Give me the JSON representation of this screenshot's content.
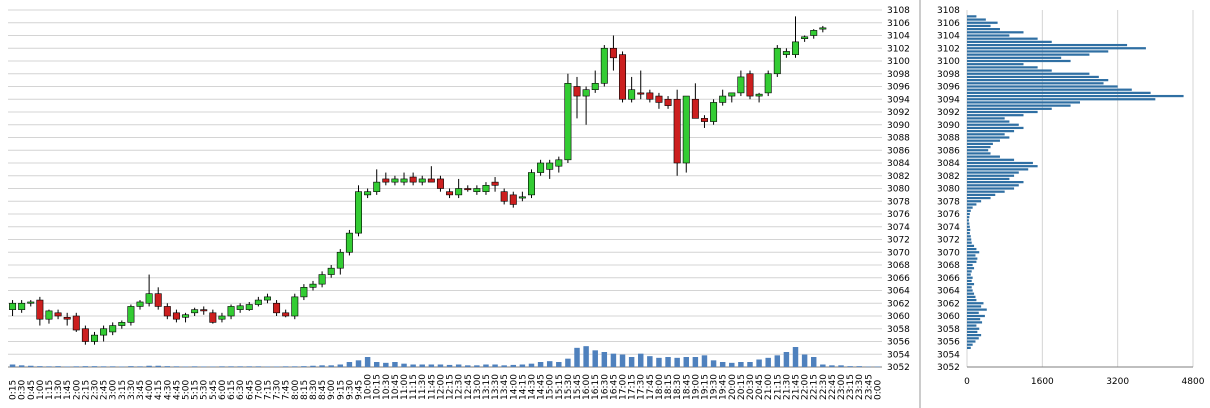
{
  "colors": {
    "up_candle": "#33cc33",
    "down_candle": "#cc1f1f",
    "volume_bars": "#4f81bd",
    "profile_bars": "#2f6fa3",
    "grid": "#d4d4d4",
    "panel_border": "#9a9a9a",
    "background": "#ffffff"
  },
  "chart_data": [
    {
      "type": "candlestick",
      "price_axis": {
        "min": 3052,
        "max": 3108,
        "ticks": [
          3052,
          3054,
          3056,
          3058,
          3060,
          3062,
          3064,
          3066,
          3068,
          3070,
          3072,
          3074,
          3076,
          3078,
          3080,
          3082,
          3084,
          3086,
          3088,
          3090,
          3092,
          3094,
          3096,
          3098,
          3100,
          3102,
          3104,
          3106,
          3108
        ]
      },
      "grid": true,
      "time_labels": [
        "0:15",
        "0:30",
        "0:45",
        "1:00",
        "1:15",
        "1:30",
        "1:45",
        "2:00",
        "2:15",
        "2:30",
        "2:45",
        "3:00",
        "3:15",
        "3:30",
        "3:45",
        "4:00",
        "4:15",
        "4:30",
        "4:45",
        "5:00",
        "5:15",
        "5:30",
        "5:45",
        "6:00",
        "6:15",
        "6:30",
        "6:45",
        "7:00",
        "7:15",
        "7:30",
        "7:45",
        "8:00",
        "8:15",
        "8:30",
        "8:45",
        "9:00",
        "9:15",
        "9:30",
        "9:45",
        "10:00",
        "10:15",
        "10:30",
        "10:45",
        "11:00",
        "11:15",
        "11:30",
        "11:45",
        "12:00",
        "12:15",
        "12:30",
        "12:45",
        "13:00",
        "13:15",
        "13:30",
        "13:45",
        "14:00",
        "14:15",
        "14:30",
        "14:45",
        "15:00",
        "15:15",
        "15:30",
        "15:45",
        "16:00",
        "16:15",
        "16:30",
        "16:45",
        "17:00",
        "17:15",
        "17:30",
        "17:45",
        "18:00",
        "18:15",
        "18:30",
        "18:45",
        "19:00",
        "19:15",
        "19:30",
        "19:45",
        "20:00",
        "20:15",
        "20:30",
        "20:45",
        "21:00",
        "21:15",
        "21:30",
        "21:45",
        "22:00",
        "22:15",
        "22:30",
        "22:45",
        "23:00",
        "23:15",
        "23:30",
        "23:45",
        "0:00"
      ],
      "candles": [
        {
          "o": 3061.0,
          "h": 3062.5,
          "l": 3060.0,
          "c": 3062.0
        },
        {
          "o": 3061.0,
          "h": 3062.5,
          "l": 3060.5,
          "c": 3062.0
        },
        {
          "o": 3062.0,
          "h": 3062.5,
          "l": 3061.5,
          "c": 3062.2
        },
        {
          "o": 3062.5,
          "h": 3063.0,
          "l": 3058.5,
          "c": 3059.5
        },
        {
          "o": 3059.5,
          "h": 3061.0,
          "l": 3058.8,
          "c": 3060.8
        },
        {
          "o": 3060.5,
          "h": 3061.0,
          "l": 3059.5,
          "c": 3060.0
        },
        {
          "o": 3059.8,
          "h": 3060.5,
          "l": 3058.5,
          "c": 3059.5
        },
        {
          "o": 3060.0,
          "h": 3060.5,
          "l": 3057.5,
          "c": 3057.8
        },
        {
          "o": 3058.0,
          "h": 3058.5,
          "l": 3055.5,
          "c": 3056.0
        },
        {
          "o": 3056.0,
          "h": 3057.5,
          "l": 3055.5,
          "c": 3057.0
        },
        {
          "o": 3057.0,
          "h": 3058.5,
          "l": 3056.0,
          "c": 3058.0
        },
        {
          "o": 3057.5,
          "h": 3059.0,
          "l": 3057.0,
          "c": 3058.5
        },
        {
          "o": 3058.5,
          "h": 3059.3,
          "l": 3058.0,
          "c": 3059.0
        },
        {
          "o": 3059.0,
          "h": 3061.8,
          "l": 3058.5,
          "c": 3061.5
        },
        {
          "o": 3061.5,
          "h": 3062.5,
          "l": 3061.0,
          "c": 3062.2
        },
        {
          "o": 3062.0,
          "h": 3066.5,
          "l": 3061.5,
          "c": 3063.5
        },
        {
          "o": 3063.5,
          "h": 3064.5,
          "l": 3061.0,
          "c": 3061.5
        },
        {
          "o": 3061.5,
          "h": 3062.0,
          "l": 3059.5,
          "c": 3060.0
        },
        {
          "o": 3060.5,
          "h": 3061.0,
          "l": 3059.0,
          "c": 3059.5
        },
        {
          "o": 3059.8,
          "h": 3060.5,
          "l": 3059.0,
          "c": 3060.2
        },
        {
          "o": 3060.5,
          "h": 3061.3,
          "l": 3060.0,
          "c": 3061.0
        },
        {
          "o": 3061.0,
          "h": 3061.5,
          "l": 3060.2,
          "c": 3060.8
        },
        {
          "o": 3060.5,
          "h": 3061.0,
          "l": 3058.8,
          "c": 3059.0
        },
        {
          "o": 3059.5,
          "h": 3060.5,
          "l": 3059.0,
          "c": 3060.0
        },
        {
          "o": 3060.0,
          "h": 3061.8,
          "l": 3059.5,
          "c": 3061.5
        },
        {
          "o": 3061.0,
          "h": 3062.0,
          "l": 3060.5,
          "c": 3061.6
        },
        {
          "o": 3061.0,
          "h": 3062.2,
          "l": 3060.8,
          "c": 3061.8
        },
        {
          "o": 3061.8,
          "h": 3063.0,
          "l": 3061.5,
          "c": 3062.5
        },
        {
          "o": 3062.5,
          "h": 3063.5,
          "l": 3062.0,
          "c": 3063.0
        },
        {
          "o": 3062.0,
          "h": 3062.5,
          "l": 3060.0,
          "c": 3060.5
        },
        {
          "o": 3060.5,
          "h": 3061.0,
          "l": 3059.8,
          "c": 3060.0
        },
        {
          "o": 3060.0,
          "h": 3063.5,
          "l": 3059.5,
          "c": 3063.0
        },
        {
          "o": 3063.0,
          "h": 3065.0,
          "l": 3062.5,
          "c": 3064.5
        },
        {
          "o": 3064.5,
          "h": 3065.5,
          "l": 3064.0,
          "c": 3065.0
        },
        {
          "o": 3065.0,
          "h": 3067.0,
          "l": 3064.5,
          "c": 3066.5
        },
        {
          "o": 3066.5,
          "h": 3068.0,
          "l": 3066.0,
          "c": 3067.5
        },
        {
          "o": 3067.5,
          "h": 3070.5,
          "l": 3066.5,
          "c": 3070.0
        },
        {
          "o": 3070.0,
          "h": 3073.5,
          "l": 3069.5,
          "c": 3073.0
        },
        {
          "o": 3073.0,
          "h": 3080.5,
          "l": 3072.5,
          "c": 3079.5
        },
        {
          "o": 3079.0,
          "h": 3080.0,
          "l": 3078.5,
          "c": 3079.5
        },
        {
          "o": 3079.5,
          "h": 3083.0,
          "l": 3079.0,
          "c": 3081.0
        },
        {
          "o": 3081.5,
          "h": 3082.5,
          "l": 3080.5,
          "c": 3081.0
        },
        {
          "o": 3081.0,
          "h": 3082.0,
          "l": 3080.5,
          "c": 3081.5
        },
        {
          "o": 3081.0,
          "h": 3082.5,
          "l": 3080.5,
          "c": 3081.5
        },
        {
          "o": 3081.8,
          "h": 3082.5,
          "l": 3080.5,
          "c": 3081.0
        },
        {
          "o": 3081.0,
          "h": 3082.0,
          "l": 3080.5,
          "c": 3081.5
        },
        {
          "o": 3081.5,
          "h": 3083.5,
          "l": 3081.0,
          "c": 3081.0
        },
        {
          "o": 3081.5,
          "h": 3082.0,
          "l": 3079.5,
          "c": 3080.0
        },
        {
          "o": 3079.5,
          "h": 3080.0,
          "l": 3078.5,
          "c": 3079.0
        },
        {
          "o": 3079.0,
          "h": 3081.5,
          "l": 3078.5,
          "c": 3080.0
        },
        {
          "o": 3080.0,
          "h": 3080.5,
          "l": 3079.5,
          "c": 3079.8
        },
        {
          "o": 3079.5,
          "h": 3080.5,
          "l": 3079.0,
          "c": 3080.0
        },
        {
          "o": 3079.5,
          "h": 3081.0,
          "l": 3079.0,
          "c": 3080.5
        },
        {
          "o": 3081.0,
          "h": 3081.8,
          "l": 3079.5,
          "c": 3080.5
        },
        {
          "o": 3079.5,
          "h": 3080.0,
          "l": 3077.5,
          "c": 3078.0
        },
        {
          "o": 3079.0,
          "h": 3079.5,
          "l": 3077.0,
          "c": 3077.5
        },
        {
          "o": 3078.5,
          "h": 3079.5,
          "l": 3078.0,
          "c": 3078.7
        },
        {
          "o": 3079.0,
          "h": 3083.0,
          "l": 3078.5,
          "c": 3082.5
        },
        {
          "o": 3082.5,
          "h": 3084.5,
          "l": 3082.0,
          "c": 3084.0
        },
        {
          "o": 3083.0,
          "h": 3084.5,
          "l": 3081.5,
          "c": 3084.0
        },
        {
          "o": 3083.5,
          "h": 3085.0,
          "l": 3082.5,
          "c": 3084.5
        },
        {
          "o": 3084.5,
          "h": 3098.0,
          "l": 3084.0,
          "c": 3096.5
        },
        {
          "o": 3096.0,
          "h": 3097.5,
          "l": 3091.0,
          "c": 3094.5
        },
        {
          "o": 3094.5,
          "h": 3096.0,
          "l": 3090.0,
          "c": 3095.5
        },
        {
          "o": 3095.5,
          "h": 3098.5,
          "l": 3095.0,
          "c": 3096.5
        },
        {
          "o": 3096.5,
          "h": 3102.5,
          "l": 3096.0,
          "c": 3102.0
        },
        {
          "o": 3102.0,
          "h": 3104.0,
          "l": 3098.5,
          "c": 3100.5
        },
        {
          "o": 3101.0,
          "h": 3101.5,
          "l": 3093.5,
          "c": 3094.0
        },
        {
          "o": 3094.0,
          "h": 3097.5,
          "l": 3093.5,
          "c": 3095.5
        },
        {
          "o": 3095.0,
          "h": 3098.5,
          "l": 3094.0,
          "c": 3094.8
        },
        {
          "o": 3095.0,
          "h": 3095.5,
          "l": 3093.5,
          "c": 3094.0
        },
        {
          "o": 3094.5,
          "h": 3095.0,
          "l": 3092.5,
          "c": 3093.5
        },
        {
          "o": 3094.0,
          "h": 3094.5,
          "l": 3092.5,
          "c": 3093.0
        },
        {
          "o": 3094.0,
          "h": 3095.5,
          "l": 3082.0,
          "c": 3084.0
        },
        {
          "o": 3084.0,
          "h": 3094.5,
          "l": 3082.5,
          "c": 3094.5
        },
        {
          "o": 3094.0,
          "h": 3096.5,
          "l": 3091.5,
          "c": 3091.0
        },
        {
          "o": 3091.0,
          "h": 3091.5,
          "l": 3089.5,
          "c": 3090.5
        },
        {
          "o": 3090.5,
          "h": 3094.0,
          "l": 3090.0,
          "c": 3093.5
        },
        {
          "o": 3093.5,
          "h": 3095.5,
          "l": 3093.0,
          "c": 3094.5
        },
        {
          "o": 3094.5,
          "h": 3095.0,
          "l": 3093.5,
          "c": 3095.0
        },
        {
          "o": 3095.0,
          "h": 3098.5,
          "l": 3094.5,
          "c": 3097.5
        },
        {
          "o": 3098.0,
          "h": 3098.5,
          "l": 3094.0,
          "c": 3094.5
        },
        {
          "o": 3094.5,
          "h": 3095.0,
          "l": 3093.5,
          "c": 3094.8
        },
        {
          "o": 3095.0,
          "h": 3098.5,
          "l": 3094.5,
          "c": 3098.0
        },
        {
          "o": 3098.0,
          "h": 3102.5,
          "l": 3097.5,
          "c": 3102.0
        },
        {
          "o": 3101.0,
          "h": 3102.0,
          "l": 3100.5,
          "c": 3101.5
        },
        {
          "o": 3101.0,
          "h": 3107.0,
          "l": 3100.5,
          "c": 3103.0
        },
        {
          "o": 3103.5,
          "h": 3104.0,
          "l": 3103.0,
          "c": 3103.8
        },
        {
          "o": 3104.0,
          "h": 3105.0,
          "l": 3103.5,
          "c": 3104.8
        },
        {
          "o": 3105.0,
          "h": 3105.5,
          "l": 3104.5,
          "c": 3105.2
        }
      ],
      "volume": [
        30,
        20,
        15,
        10,
        8,
        10,
        6,
        8,
        10,
        10,
        8,
        8,
        6,
        10,
        8,
        15,
        15,
        10,
        8,
        6,
        8,
        6,
        6,
        8,
        8,
        8,
        8,
        8,
        6,
        6,
        8,
        8,
        10,
        15,
        20,
        20,
        30,
        60,
        80,
        120,
        60,
        50,
        60,
        40,
        30,
        30,
        30,
        30,
        25,
        30,
        20,
        20,
        30,
        30,
        20,
        25,
        30,
        40,
        60,
        70,
        60,
        100,
        230,
        250,
        200,
        180,
        160,
        150,
        120,
        160,
        130,
        110,
        120,
        110,
        120,
        120,
        140,
        80,
        60,
        50,
        60,
        60,
        90,
        110,
        140,
        180,
        240,
        150,
        120,
        30,
        20,
        20,
        10,
        10,
        5,
        5
      ],
      "volume_max": 600
    },
    {
      "type": "bar",
      "orientation": "horizontal",
      "x_ticks": [
        0,
        1600,
        3200,
        4800
      ],
      "y_ticks": [
        3052,
        3054,
        3056,
        3058,
        3060,
        3062,
        3064,
        3066,
        3068,
        3070,
        3072,
        3074,
        3076,
        3078,
        3080,
        3082,
        3084,
        3086,
        3088,
        3090,
        3092,
        3094,
        3096,
        3098,
        3100,
        3102,
        3104,
        3106,
        3108
      ],
      "y_min": 3052,
      "y_max": 3108,
      "prices": [
        3055.0,
        3055.5,
        3056.0,
        3056.5,
        3057.0,
        3057.5,
        3058.0,
        3058.5,
        3059.0,
        3059.5,
        3060.0,
        3060.5,
        3061.0,
        3061.5,
        3062.0,
        3062.5,
        3063.0,
        3063.5,
        3064.0,
        3064.5,
        3065.0,
        3065.5,
        3066.0,
        3066.5,
        3067.0,
        3067.5,
        3068.0,
        3068.5,
        3069.0,
        3069.5,
        3070.0,
        3070.5,
        3071.0,
        3071.5,
        3072.0,
        3072.5,
        3073.0,
        3073.5,
        3074.0,
        3074.5,
        3075.0,
        3075.5,
        3076.0,
        3076.5,
        3077.0,
        3077.5,
        3078.0,
        3078.5,
        3079.0,
        3079.5,
        3080.0,
        3080.5,
        3081.0,
        3081.5,
        3082.0,
        3082.5,
        3083.0,
        3083.5,
        3084.0,
        3084.5,
        3085.0,
        3085.5,
        3086.0,
        3086.5,
        3087.0,
        3087.5,
        3088.0,
        3088.5,
        3089.0,
        3089.5,
        3090.0,
        3090.5,
        3091.0,
        3091.5,
        3092.0,
        3092.5,
        3093.0,
        3093.5,
        3094.0,
        3094.5,
        3095.0,
        3095.5,
        3096.0,
        3096.5,
        3097.0,
        3097.5,
        3098.0,
        3098.5,
        3099.0,
        3099.5,
        3100.0,
        3100.5,
        3101.0,
        3101.5,
        3102.0,
        3102.5,
        3103.0,
        3103.5,
        3104.0,
        3104.5,
        3105.0,
        3105.5,
        3106.0,
        3106.5,
        3107.0
      ],
      "volumes": [
        80,
        120,
        180,
        250,
        300,
        220,
        260,
        200,
        320,
        280,
        380,
        250,
        420,
        300,
        350,
        200,
        180,
        150,
        120,
        100,
        150,
        100,
        120,
        80,
        100,
        150,
        120,
        200,
        220,
        180,
        260,
        200,
        150,
        100,
        90,
        80,
        60,
        70,
        60,
        50,
        40,
        50,
        60,
        80,
        120,
        200,
        300,
        500,
        600,
        800,
        1000,
        1100,
        1200,
        900,
        1000,
        1100,
        1300,
        1500,
        1400,
        1000,
        700,
        500,
        450,
        500,
        550,
        700,
        900,
        800,
        1000,
        1200,
        1100,
        900,
        800,
        1200,
        1500,
        1800,
        2200,
        2400,
        4000,
        4600,
        3900,
        3500,
        3200,
        2900,
        3000,
        2800,
        2600,
        1800,
        1500,
        1200,
        2200,
        2000,
        2600,
        3000,
        3800,
        3400,
        1800,
        1500,
        900,
        1200,
        700,
        500,
        650,
        400,
        200
      ]
    }
  ]
}
